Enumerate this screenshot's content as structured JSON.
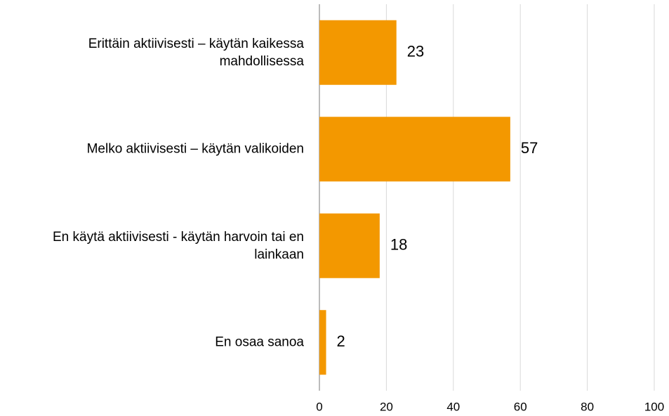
{
  "chart_data": {
    "type": "bar",
    "orientation": "horizontal",
    "categories": [
      "Erittäin aktiivisesti – käytän kaikessa mahdollisessa",
      "Melko aktiivisesti – käytän valikoiden",
      "En käytä aktiivisesti - käytän harvoin tai en lainkaan",
      "En osaa sanoa"
    ],
    "values": [
      23,
      57,
      18,
      2
    ],
    "color": "#f39800",
    "xlim": [
      0,
      100
    ],
    "xticks": [
      0,
      20,
      40,
      60,
      80,
      100
    ],
    "grid": true
  }
}
